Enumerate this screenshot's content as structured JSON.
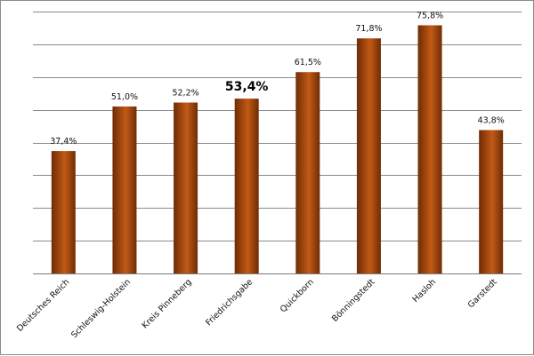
{
  "chart_data": {
    "type": "bar",
    "categories": [
      "Deutsches Reich",
      "Schleswig-Holstein",
      "Kreis Pinneberg",
      "Friedrichsgabe",
      "Quickborn",
      "Bönningstedt",
      "Hasloh",
      "Garstedt"
    ],
    "values": [
      37.4,
      51.0,
      52.2,
      53.4,
      61.5,
      71.8,
      75.8,
      43.8
    ],
    "data_labels": [
      "37,4%",
      "51,0%",
      "52,2%",
      "53,4%",
      "61,5%",
      "71,8%",
      "75,8%",
      "43,8%"
    ],
    "highlighted_category": "Friedrichsgabe",
    "title": "",
    "xlabel": "",
    "ylabel": "",
    "ylim": [
      0,
      80
    ],
    "y_gridline_step": 10,
    "y_tick_labels_shown": false,
    "grid": true,
    "legend": "none",
    "colors": {
      "bar": "#a84a0e",
      "bar_dark": "#6f2c05",
      "bar_light": "#c25a16",
      "gridline": "#8a8a8a",
      "border": "#8c8c8c"
    }
  }
}
